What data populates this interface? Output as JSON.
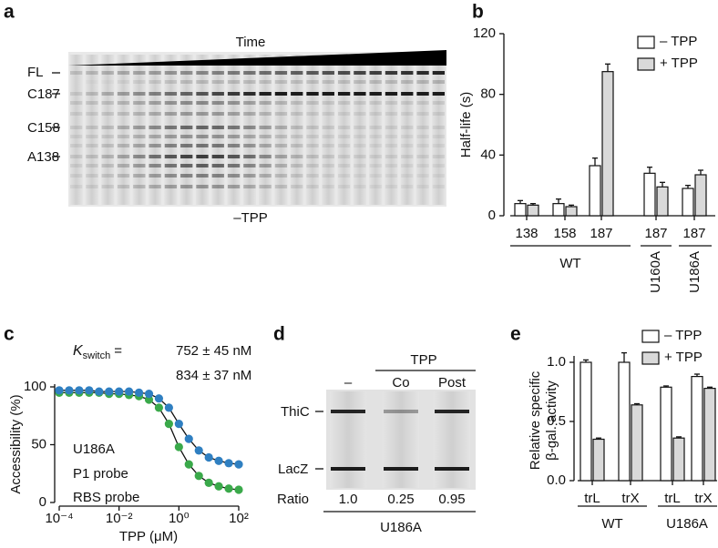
{
  "panel_labels": [
    "a",
    "b",
    "c",
    "d",
    "e"
  ],
  "gel_a": {
    "time_label": "Time",
    "band_labels": [
      "FL",
      "C187",
      "C158",
      "A138"
    ],
    "condition": "–TPP"
  },
  "chart_data": [
    {
      "type": "bar",
      "y_label": "Half-life (s)",
      "categories": [
        "138",
        "158",
        "187",
        "187",
        "187"
      ],
      "group_labels": [
        "WT",
        "U160A",
        "U186A"
      ],
      "series": [
        {
          "name": "– TPP",
          "color": "#ffffff",
          "values": [
            8,
            8,
            33,
            28,
            18
          ],
          "errors": [
            2,
            3,
            5,
            4,
            2
          ]
        },
        {
          "name": "+ TPP",
          "color": "#d9d9d9",
          "values": [
            7,
            6,
            95,
            19,
            27
          ],
          "errors": [
            1,
            1,
            5,
            3,
            3
          ]
        }
      ],
      "ylim": [
        0,
        120
      ],
      "yticks": [
        0,
        40,
        80,
        120
      ]
    },
    {
      "type": "line",
      "x_scale": "log",
      "x_label": "TPP (μM)",
      "y_label": "Accessibility (%)",
      "annotation": {
        "symbol": "K",
        "subscript": "switch",
        "equals": "="
      },
      "legend_title": "U186A",
      "x": [
        0.0001,
        0.000215,
        0.000464,
        0.001,
        0.00215,
        0.00464,
        0.01,
        0.0215,
        0.0464,
        0.1,
        0.215,
        0.464,
        1,
        2.15,
        4.64,
        10,
        21.5,
        46.4,
        100
      ],
      "series": [
        {
          "name": "P1 probe",
          "color": "#3aa94a",
          "kswitch": "752 ± 45 nM",
          "values": [
            95,
            95,
            95,
            95,
            95,
            94,
            94,
            93,
            92,
            89,
            82,
            68,
            48,
            33,
            23,
            17,
            14,
            12,
            11
          ]
        },
        {
          "name": "RBS probe",
          "color": "#2f7fc1",
          "kswitch": "834 ± 37 nM",
          "values": [
            97,
            97,
            97,
            97,
            96,
            96,
            96,
            96,
            95,
            94,
            90,
            82,
            68,
            55,
            45,
            39,
            36,
            34,
            33
          ]
        }
      ],
      "xlim": [
        0.0001,
        100
      ],
      "xticks": [
        {
          "value": 0.0001,
          "label": "10⁻⁴"
        },
        {
          "value": 0.01,
          "label": "10⁻²"
        },
        {
          "value": 1,
          "label": "10⁰"
        },
        {
          "value": 100,
          "label": "10²"
        }
      ],
      "ylim": [
        0,
        100
      ],
      "yticks": [
        0,
        50,
        100
      ]
    },
    {
      "type": "bar",
      "y_label": [
        "Relative specific",
        "β-gal. activity"
      ],
      "categories": [
        "trL",
        "trX",
        "trL",
        "trX"
      ],
      "group_labels": [
        "WT",
        "U186A"
      ],
      "series": [
        {
          "name": "– TPP",
          "color": "#ffffff",
          "values": [
            1.0,
            1.0,
            0.79,
            0.88
          ],
          "errors": [
            0.02,
            0.08,
            0.01,
            0.02
          ]
        },
        {
          "name": "+ TPP",
          "color": "#d9d9d9",
          "values": [
            0.35,
            0.64,
            0.36,
            0.78
          ],
          "errors": [
            0.01,
            0.01,
            0.01,
            0.01
          ]
        }
      ],
      "ylim": [
        0,
        1.05
      ],
      "yticks": [
        {
          "value": 0,
          "label": "0.0"
        },
        {
          "value": 0.5,
          "label": "0.5"
        },
        {
          "value": 1,
          "label": "1.0"
        }
      ]
    }
  ],
  "gel_d": {
    "tpp_label": "TPP",
    "lanes": [
      "–",
      "Co",
      "Post"
    ],
    "band_labels": [
      "ThiC",
      "LacZ"
    ],
    "ratio_label": "Ratio",
    "ratios": [
      "1.0",
      "0.25",
      "0.95"
    ],
    "sample": "U186A"
  }
}
